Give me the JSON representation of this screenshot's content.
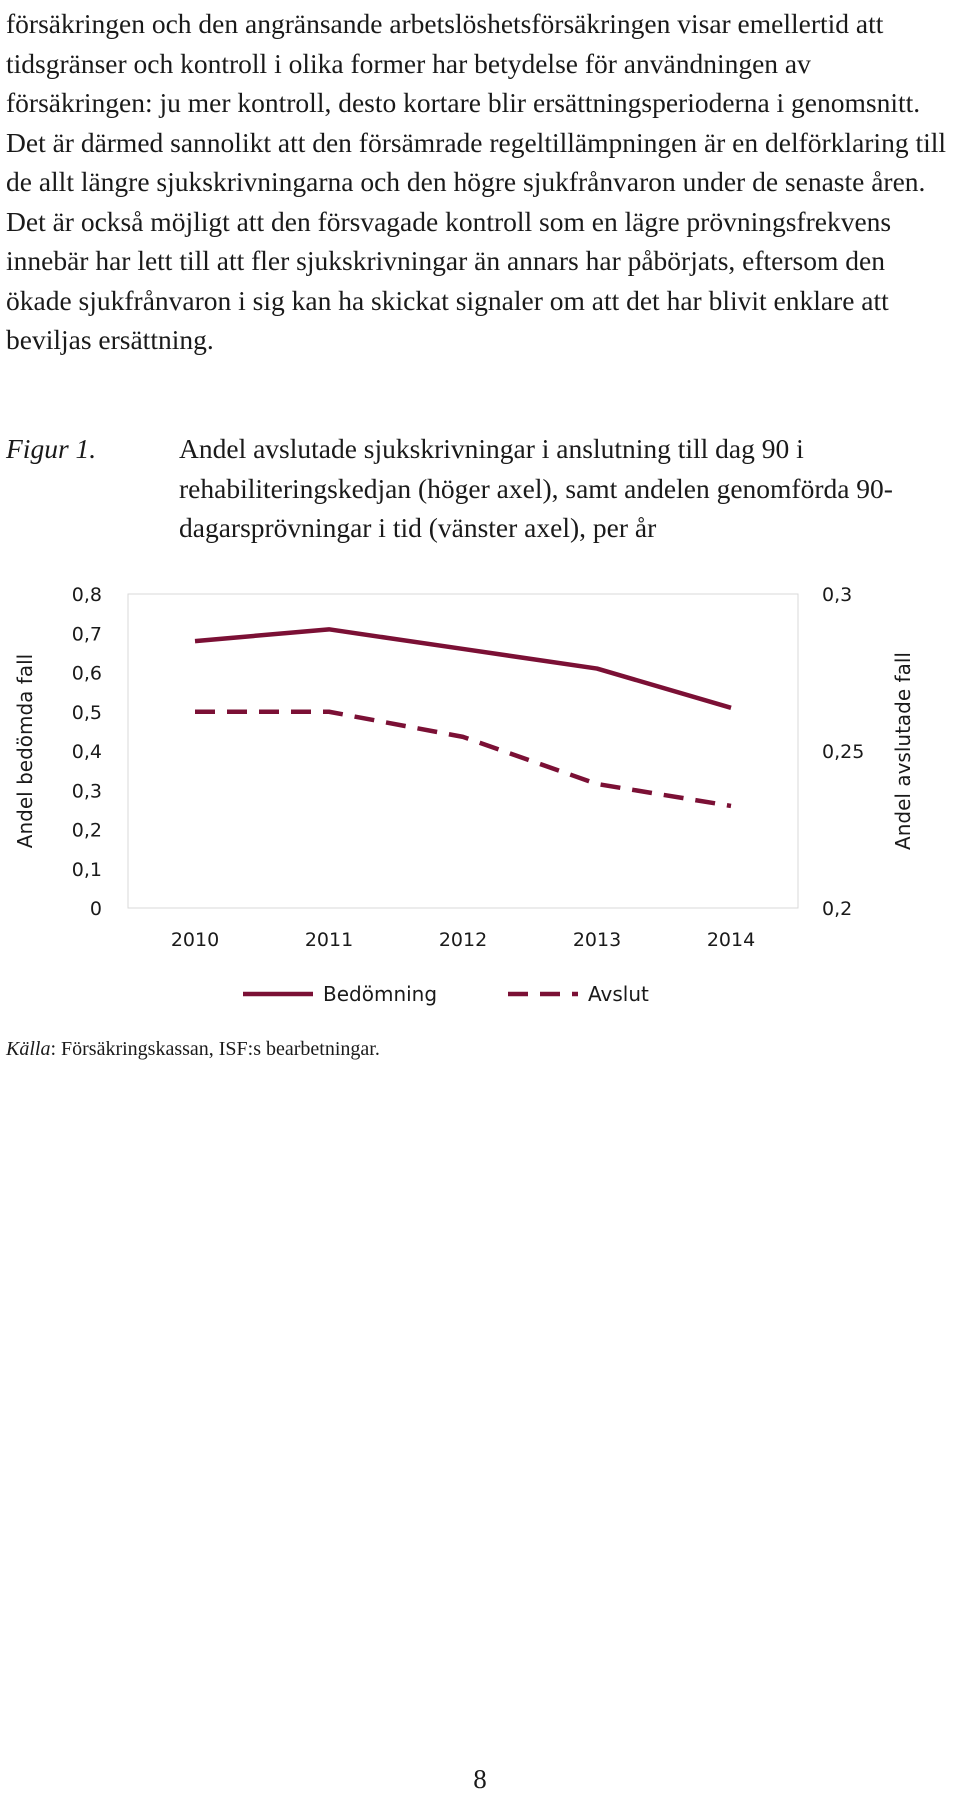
{
  "body_text": "försäkringen och den angränsande arbetslöshetsförsäkringen visar emellertid att tidsgränser och kontroll i olika former har betydelse för användningen av försäkringen: ju mer kontroll, desto kortare blir ersättningsperioderna i genomsnitt. Det är därmed sannolikt att den försämrade regeltillämpningen är en delförklaring till de allt längre sjukskrivningarna och den högre sjukfrånvaron under de senaste åren. Det är också möjligt att den försvagade kontroll som en lägre prövningsfrekvens innebär har lett till att fler sjukskrivningar än annars har påbörjats, eftersom den ökade sjukfrånvaron i sig kan ha skickat signaler om att det har blivit enklare att beviljas ersättning.",
  "figure": {
    "label": "Figur 1.",
    "caption": "Andel avslutade sjukskrivningar i anslutning till dag 90 i rehabiliteringskedjan (höger axel), samt andelen genomförda 90-dagarsprövningar i tid (vänster axel), per år"
  },
  "chart_data": {
    "type": "line",
    "x": [
      "2010",
      "2011",
      "2012",
      "2013",
      "2014"
    ],
    "series": [
      {
        "name": "Bedömning",
        "axis": "left",
        "style": "solid",
        "values": [
          0.68,
          0.71,
          0.66,
          0.61,
          0.51
        ]
      },
      {
        "name": "Avslut",
        "axis": "right",
        "style": "dashed",
        "values": [
          0.2625,
          0.2625,
          0.2545,
          0.2395,
          0.2325
        ]
      }
    ],
    "ylabel_left": "Andel bedömda fall",
    "ylabel_right": "Andel avslutade fall",
    "ylim_left": [
      0,
      0.8
    ],
    "ylim_right": [
      0.2,
      0.3
    ],
    "yticks_left": [
      "0",
      "0,1",
      "0,2",
      "0,3",
      "0,4",
      "0,5",
      "0,6",
      "0,7",
      "0,8"
    ],
    "yticks_right": [
      "0,2",
      "0,25",
      "0,3"
    ],
    "line_color": "#7b1035",
    "grid": false,
    "legend": "bottom"
  },
  "source": {
    "label": "Källa",
    "text": ": Försäkringskassan, ISF:s bearbetningar."
  },
  "page_number": "8"
}
